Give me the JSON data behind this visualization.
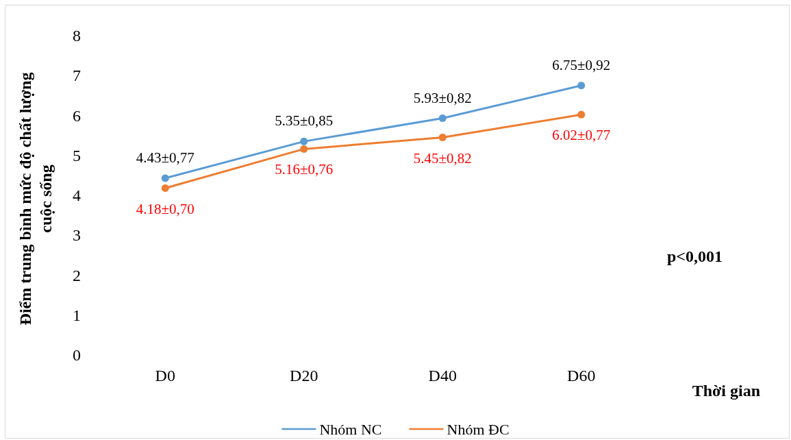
{
  "chart_data": {
    "type": "line",
    "ylabel": "Điểm trung bình mức độ chất lượng\ncuộc sống",
    "xlabel": "Thời gian",
    "categories": [
      "D0",
      "D20",
      "D40",
      "D60"
    ],
    "series": [
      {
        "name": "Nhóm NC",
        "color": "#5b9bd5",
        "values": [
          4.43,
          5.35,
          5.93,
          6.75
        ],
        "value_labels": [
          "4.43±0,77",
          "5.35±0,85",
          "5.93±0,82",
          "6.75±0,92"
        ]
      },
      {
        "name": "Nhóm ĐC",
        "color": "#ed7d31",
        "values": [
          4.18,
          5.16,
          5.45,
          6.02
        ],
        "value_labels": [
          "4.18±0,70",
          "5.16±0,76",
          "5.45±0,82",
          "6.02±0,77"
        ]
      }
    ],
    "ylim": [
      0,
      8
    ],
    "yticks": [
      0,
      1,
      2,
      3,
      4,
      5,
      6,
      7,
      8
    ],
    "grid": false,
    "legend": "bottom",
    "marker": "circle",
    "line_style": "solid",
    "annotations": [
      "p<0,001"
    ]
  }
}
